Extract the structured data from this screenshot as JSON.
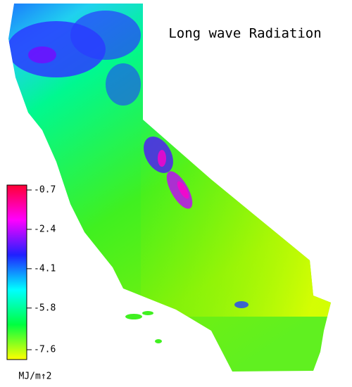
{
  "map": {
    "title": "Long wave Radiation",
    "colorbar": {
      "label": "MJ/m↑2",
      "lim": [
        -0.7,
        -7.6
      ],
      "ticks": [
        -0.7,
        -2.4,
        -4.1,
        -5.8,
        -7.6
      ],
      "colors": [
        "#ff0033",
        "#ff00ff",
        "#2020ff",
        "#00ffff",
        "#00ff40",
        "#ffff00"
      ]
    }
  }
}
